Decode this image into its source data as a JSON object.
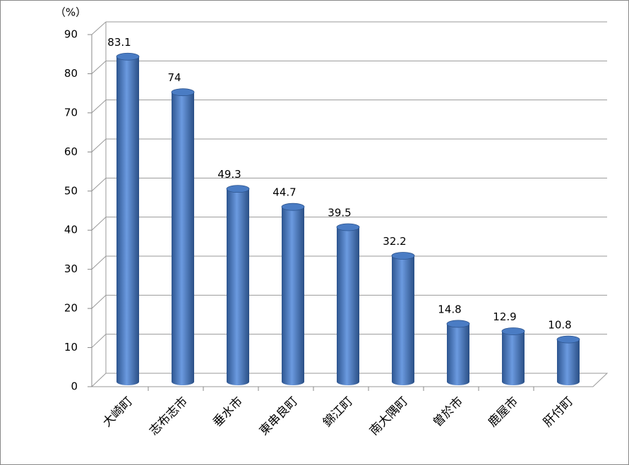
{
  "chart_data": {
    "type": "bar3d",
    "y_label": "（%）",
    "categories": [
      "大崎町",
      "志布志市",
      "垂水市",
      "東串良町",
      "錦江町",
      "南大隅町",
      "曽於市",
      "鹿屋市",
      "肝付町"
    ],
    "values": [
      83.1,
      74,
      49.3,
      44.7,
      39.5,
      32.2,
      14.8,
      12.9,
      10.8
    ],
    "color": "#4a7cc4",
    "ylim": [
      0,
      90
    ],
    "yticks": [
      0,
      10,
      20,
      30,
      40,
      50,
      60,
      70,
      80,
      90
    ],
    "grid": true
  }
}
